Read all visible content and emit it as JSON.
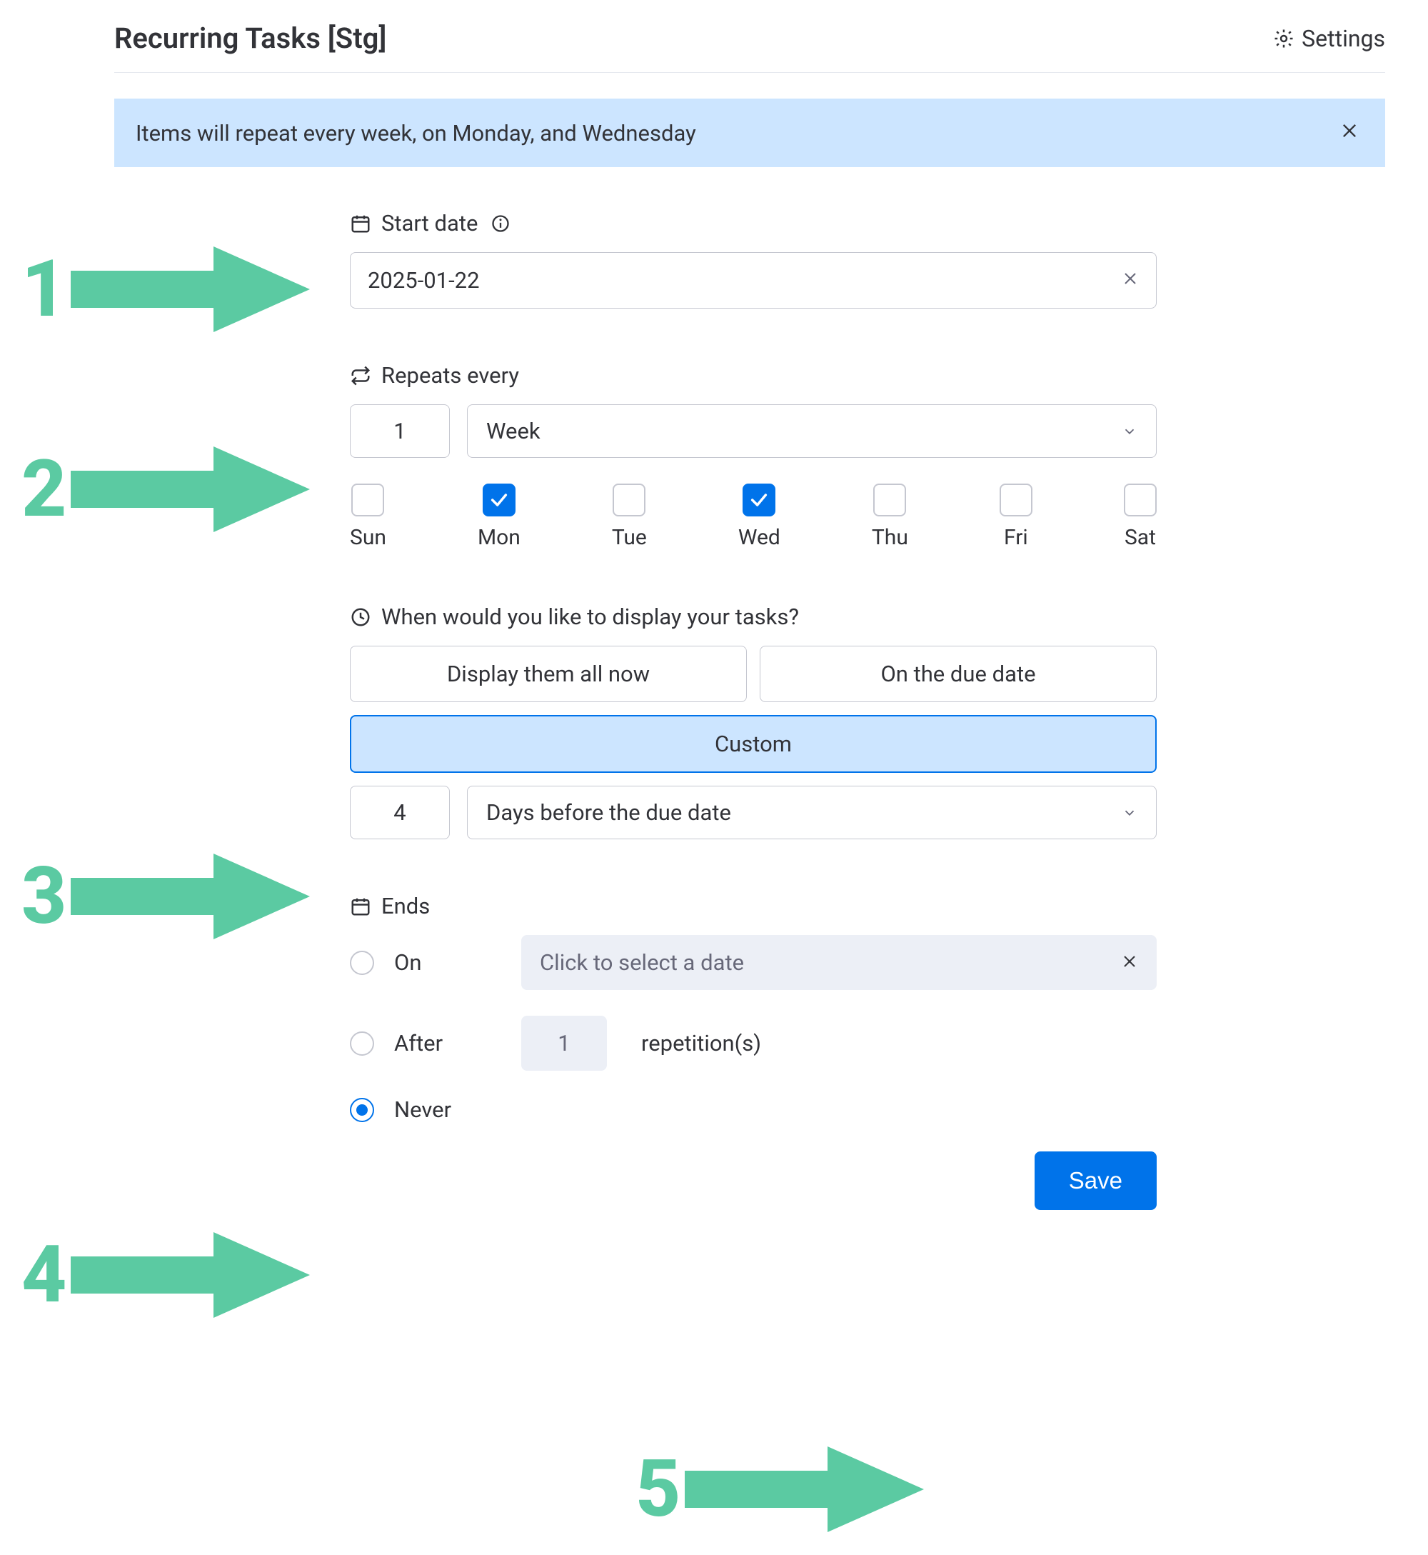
{
  "colors": {
    "accent_mint": "#5bcaa2",
    "accent_blue": "#0073ea",
    "banner_bg": "#cce5ff",
    "border": "#c5c7d0",
    "text": "#323338",
    "muted": "#676879",
    "disabled_bg": "#eceff6"
  },
  "header": {
    "title": "Recurring Tasks [Stg]",
    "settings_label": "Settings"
  },
  "banner": {
    "text": "Items will repeat every week, on Monday, and Wednesday"
  },
  "start_date": {
    "label": "Start date",
    "value": "2025-01-22"
  },
  "repeats": {
    "label": "Repeats every",
    "interval": "1",
    "unit": "Week",
    "days": [
      {
        "short": "Sun",
        "checked": false
      },
      {
        "short": "Mon",
        "checked": true
      },
      {
        "short": "Tue",
        "checked": false
      },
      {
        "short": "Wed",
        "checked": true
      },
      {
        "short": "Thu",
        "checked": false
      },
      {
        "short": "Fri",
        "checked": false
      },
      {
        "short": "Sat",
        "checked": false
      }
    ]
  },
  "display": {
    "label": "When would you like to display your tasks?",
    "opt_all_now": "Display them all now",
    "opt_due_date": "On the due date",
    "opt_custom": "Custom",
    "selected": "Custom",
    "custom_count": "4",
    "custom_unit": "Days before the due date"
  },
  "ends": {
    "label": "Ends",
    "on_label": "On",
    "on_placeholder": "Click to select a date",
    "after_label": "After",
    "after_count": "1",
    "after_suffix": "repetition(s)",
    "never_label": "Never",
    "selected": "never"
  },
  "save": {
    "label": "Save"
  },
  "annotations": {
    "n1": "1",
    "n2": "2",
    "n3": "3",
    "n4": "4",
    "n5": "5"
  }
}
